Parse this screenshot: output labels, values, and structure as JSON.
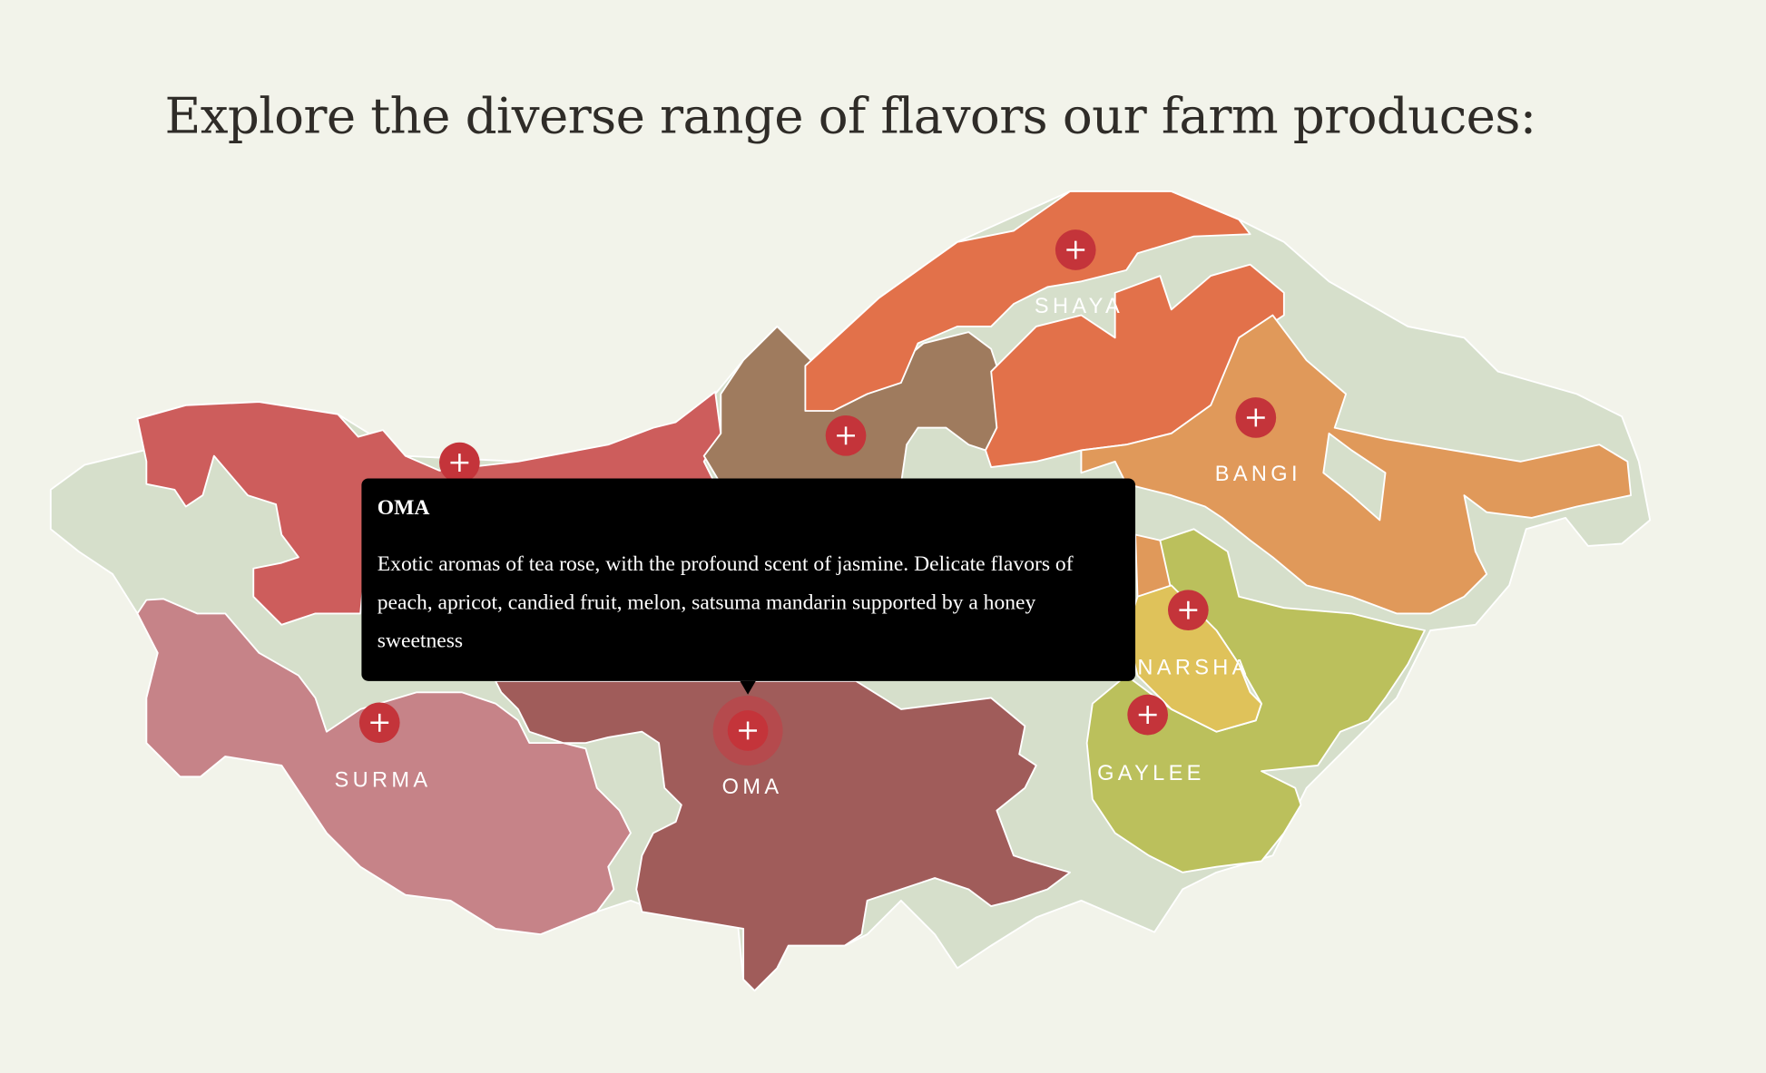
{
  "heading": "Explore the diverse range of flavors our farm produces:",
  "colors": {
    "background": "#f2f3ea",
    "land": "#d6dfcb",
    "oma": "#a05c5a",
    "surma": "#c68388",
    "red_region": "#cd5d5c",
    "brown_region": "#9f7b5e",
    "shaya": "#e2714a",
    "bangi": "#e0995a",
    "narsha": "#dfc25a",
    "gaylee": "#bbc05c",
    "marker": "#c4343a"
  },
  "regions": [
    {
      "id": "shaya",
      "label": "SHAYA"
    },
    {
      "id": "bangi",
      "label": "BANGI"
    },
    {
      "id": "narsha",
      "label": "NARSHA"
    },
    {
      "id": "gaylee",
      "label": "GAYLEE"
    },
    {
      "id": "surma",
      "label": "SURMA"
    },
    {
      "id": "oma",
      "label": "OMA"
    }
  ],
  "marker_icon": "plus-icon",
  "tooltip": {
    "title": "OMA",
    "text": "Exotic aromas of tea rose, with the profound scent of jasmine. Delicate flavors of peach, apricot, candied fruit, melon, satsuma mandarin supported by a honey sweetness"
  }
}
